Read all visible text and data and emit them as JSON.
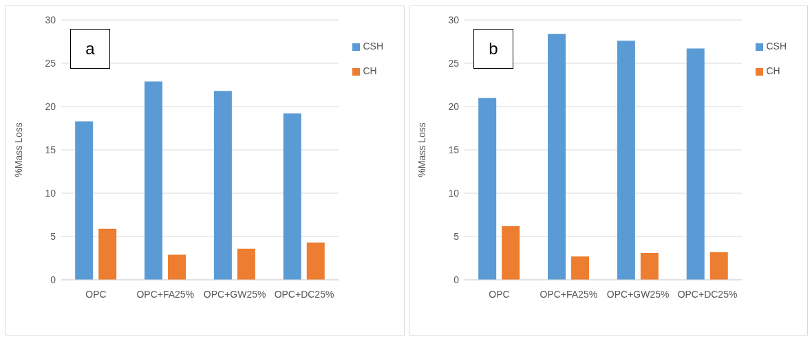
{
  "chart_data": [
    {
      "type": "bar",
      "ylabel": "%Mass Loss",
      "annotations": [
        "a"
      ],
      "categories": [
        "OPC",
        "OPC+FA25%",
        "OPC+GW25%",
        "OPC+DC25%"
      ],
      "series": [
        {
          "name": "CSH",
          "color": "#5b9bd5",
          "values": [
            18.3,
            22.9,
            21.8,
            19.2
          ]
        },
        {
          "name": "CH",
          "color": "#ed7d31",
          "values": [
            5.9,
            2.9,
            3.6,
            4.3
          ]
        }
      ],
      "ylim": [
        0,
        30
      ],
      "yticks": [
        0,
        5,
        10,
        15,
        20,
        25,
        30
      ],
      "grid": "y",
      "legend": "top right"
    },
    {
      "type": "bar",
      "ylabel": "%Mass Loss",
      "annotations": [
        "b"
      ],
      "categories": [
        "OPC",
        "OPC+FA25%",
        "OPC+GW25%",
        "OPC+DC25%"
      ],
      "series": [
        {
          "name": "CSH",
          "color": "#5b9bd5",
          "values": [
            21.0,
            28.4,
            27.6,
            26.7
          ]
        },
        {
          "name": "CH",
          "color": "#ed7d31",
          "values": [
            6.2,
            2.7,
            3.1,
            3.2
          ]
        }
      ],
      "ylim": [
        0,
        30
      ],
      "yticks": [
        0,
        5,
        10,
        15,
        20,
        25,
        30
      ],
      "grid": "y",
      "legend": "top right"
    }
  ]
}
